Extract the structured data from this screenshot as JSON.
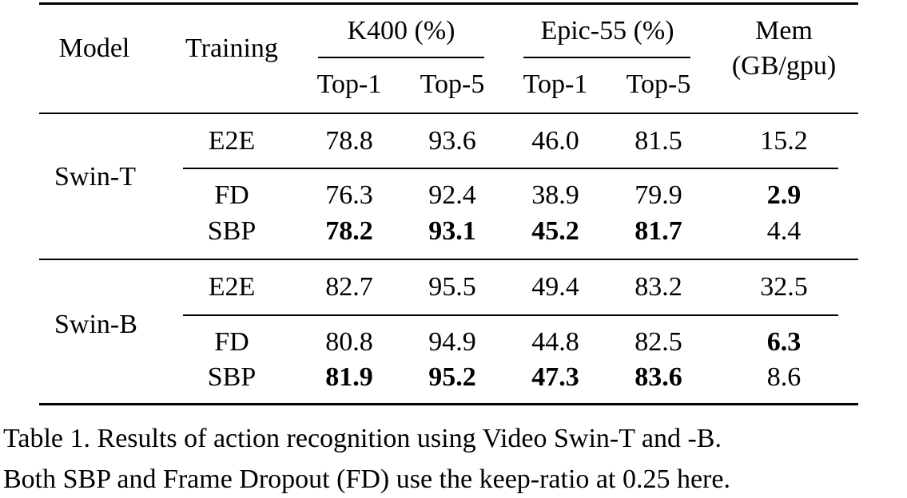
{
  "table": {
    "headers": {
      "model": "Model",
      "training": "Training",
      "k400": "K400 (%)",
      "epic": "Epic-55 (%)",
      "mem_line1": "Mem",
      "mem_line2": "(GB/gpu)",
      "top1": "Top-1",
      "top5": "Top-5"
    },
    "groups": [
      {
        "model": "Swin-T",
        "rows": [
          {
            "training": "E2E",
            "k400_top1": "78.8",
            "k400_top5": "93.6",
            "epic_top1": "46.0",
            "epic_top5": "81.5",
            "mem": "15.2"
          },
          {
            "training": "FD",
            "k400_top1": "76.3",
            "k400_top5": "92.4",
            "epic_top1": "38.9",
            "epic_top5": "79.9",
            "mem": "2.9"
          },
          {
            "training": "SBP",
            "k400_top1": "78.2",
            "k400_top5": "93.1",
            "epic_top1": "45.2",
            "epic_top5": "81.7",
            "mem": "4.4"
          }
        ]
      },
      {
        "model": "Swin-B",
        "rows": [
          {
            "training": "E2E",
            "k400_top1": "82.7",
            "k400_top5": "95.5",
            "epic_top1": "49.4",
            "epic_top5": "83.2",
            "mem": "32.5"
          },
          {
            "training": "FD",
            "k400_top1": "80.8",
            "k400_top5": "94.9",
            "epic_top1": "44.8",
            "epic_top5": "82.5",
            "mem": "6.3"
          },
          {
            "training": "SBP",
            "k400_top1": "81.9",
            "k400_top5": "95.2",
            "epic_top1": "47.3",
            "epic_top5": "83.6",
            "mem": "8.6"
          }
        ]
      }
    ]
  },
  "caption": {
    "line1": "Table 1. Results of action recognition using Video Swin-T and -B.",
    "line2": "Both SBP and Frame Dropout (FD) use the keep-ratio at 0.25 here."
  }
}
